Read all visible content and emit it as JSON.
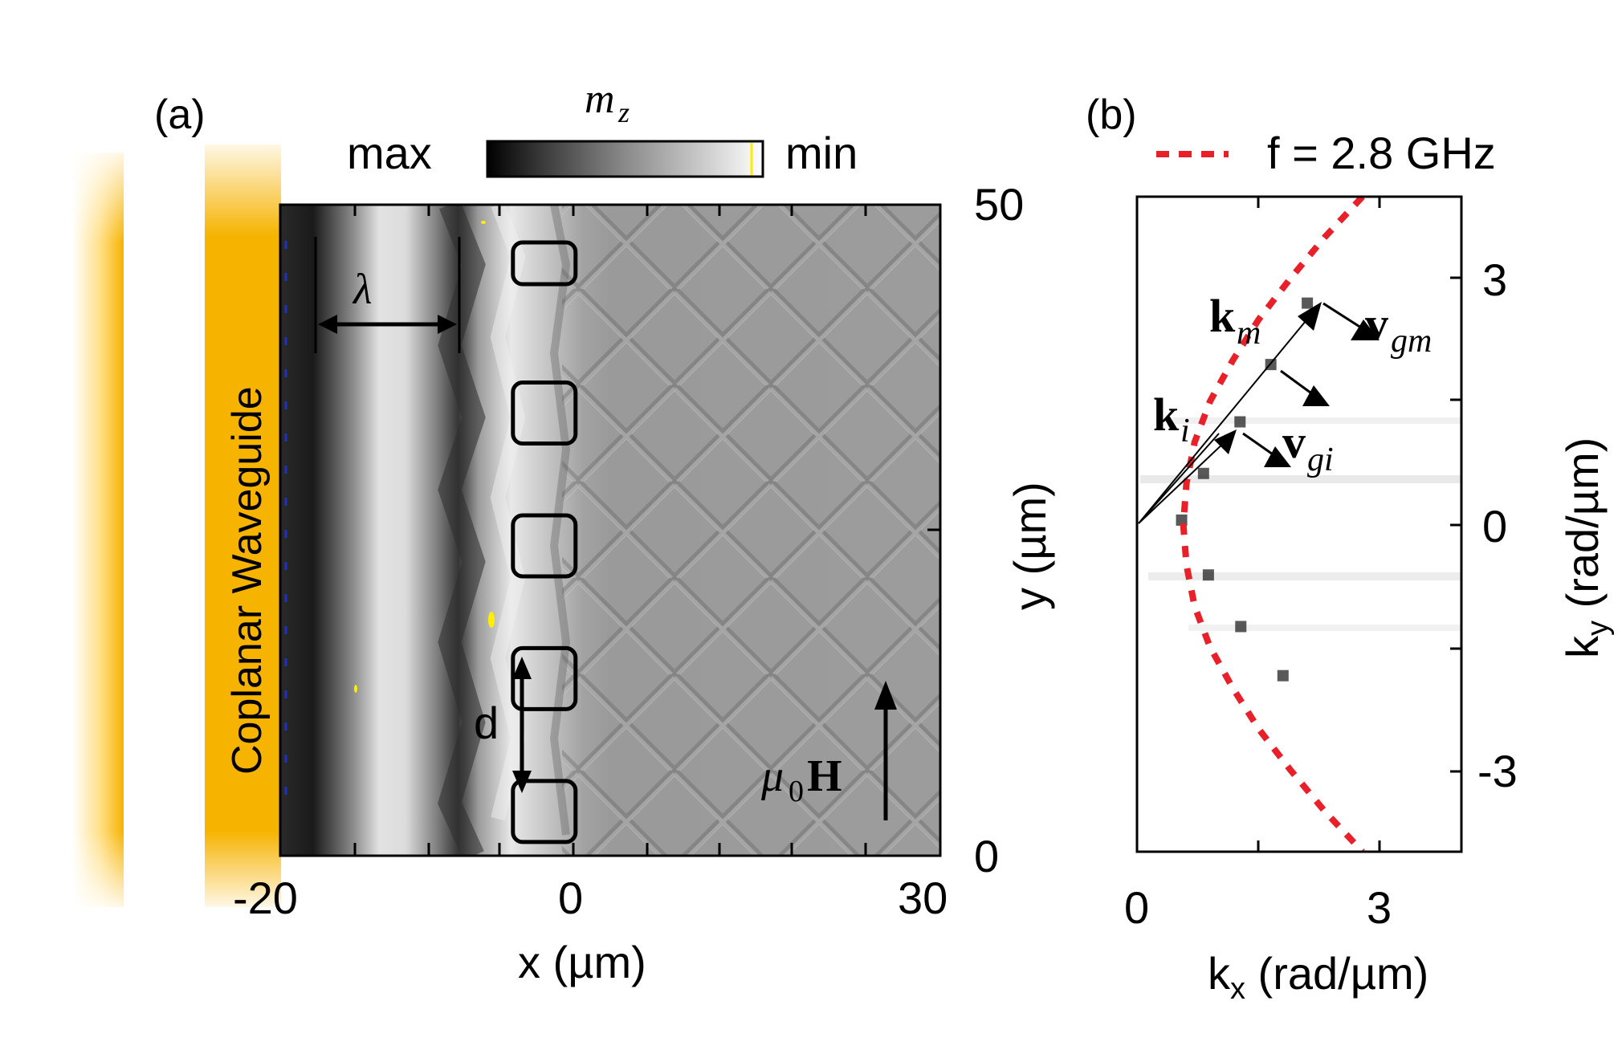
{
  "figure": {
    "panel_a": {
      "label": "(a)",
      "colorbar": {
        "symbol": "m",
        "subscript": "z",
        "left_label": "max",
        "right_label": "min"
      },
      "waveguide_label": "Coplanar Waveguide",
      "annotations": {
        "wavelength": "λ",
        "spacing": "d",
        "field_symbol": "μ",
        "field_sub": "0",
        "field_vec": "H"
      },
      "colors": {
        "waveguide": "#f6b300",
        "marker_yellow": "#ffee00",
        "marker_blue": "#2030c0"
      }
    },
    "panel_b": {
      "label": "(b)",
      "legend": "f = 2.8 GHz",
      "annotations": {
        "km": "k",
        "km_sub": "m",
        "ki": "k",
        "ki_sub": "i",
        "vgm": "v",
        "vgm_sub": "gm",
        "vgi": "v",
        "vgi_sub": "gi"
      },
      "colors": {
        "dispersion": "#e8202a"
      }
    }
  },
  "chart_data": [
    {
      "type": "heatmap",
      "title": "",
      "xlabel": "x (µm)",
      "ylabel": "y (µm)",
      "xlim": [
        -20,
        30
      ],
      "ylim": [
        0,
        50
      ],
      "x_tick_labels": [
        "-20",
        "0",
        "30"
      ],
      "y_tick_labels": [
        "0",
        "50"
      ],
      "colorbar_label": "m_z",
      "colorbar_range": [
        "max",
        "min"
      ],
      "apertures_center_x": 0,
      "aperture_count": 5,
      "aperture_center_y": [
        3.4,
        13.6,
        23.8,
        34.0,
        45.5
      ]
    },
    {
      "type": "scatter",
      "title": "",
      "xlabel": "kx (rad/µm)",
      "ylabel": "ky (rad/µm)",
      "xlim": [
        0,
        4
      ],
      "ylim": [
        -4,
        4
      ],
      "x_tick_labels": [
        "0",
        "3"
      ],
      "y_tick_labels": [
        "-3",
        "0",
        "3"
      ],
      "series": [
        {
          "name": "f = 2.8 GHz",
          "style": "dashed",
          "points": [
            [
              0.57,
              0
            ],
            [
              0.61,
              0.5
            ],
            [
              0.61,
              -0.5
            ],
            [
              0.71,
              1.0
            ],
            [
              0.71,
              -1.0
            ],
            [
              0.9,
              1.5
            ],
            [
              0.9,
              -1.5
            ],
            [
              1.18,
              2.0
            ],
            [
              1.18,
              -2.0
            ],
            [
              1.5,
              2.5
            ],
            [
              1.5,
              -2.5
            ],
            [
              1.89,
              3.0
            ],
            [
              1.89,
              -3.0
            ],
            [
              2.31,
              3.5
            ],
            [
              2.31,
              -3.5
            ],
            [
              2.78,
              4.0
            ],
            [
              2.78,
              -4.0
            ]
          ]
        }
      ],
      "measured_peaks": [
        [
          0.55,
          0.05
        ],
        [
          0.82,
          0.62
        ],
        [
          1.27,
          1.25
        ],
        [
          1.65,
          1.95
        ],
        [
          0.88,
          -0.62
        ],
        [
          1.28,
          -1.25
        ],
        [
          1.8,
          -1.85
        ],
        [
          2.1,
          2.7
        ]
      ]
    }
  ]
}
